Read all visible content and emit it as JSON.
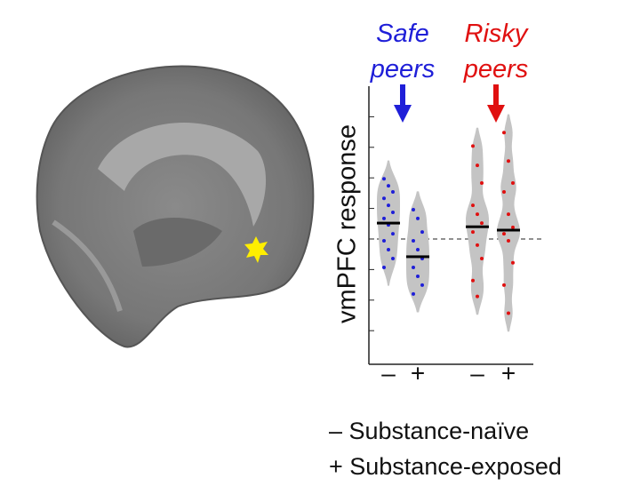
{
  "chart_data": {
    "type": "strip",
    "ylabel": "vmPFC response",
    "ylim": [
      -4.1,
      5
    ],
    "yticks": [
      -3,
      -2,
      -1,
      0,
      1,
      2,
      3,
      4
    ],
    "refline": 0,
    "series": [
      {
        "name": "Safe peers",
        "color": "#1f1fd8",
        "categories": [
          "–",
          "+"
        ],
        "values": [
          [
            1.97,
            1.74,
            1.54,
            1.33,
            1.1,
            0.87,
            0.67,
            0.46,
            0.17,
            -0.06,
            -0.35,
            -0.64,
            -0.93
          ],
          [
            0.96,
            0.67,
            0.23,
            -0.06,
            -0.35,
            -0.64,
            -0.93,
            -1.22,
            -1.51,
            -1.8
          ]
        ],
        "means": [
          0.52,
          -0.58
        ]
      },
      {
        "name": "Risky peers",
        "color": "#e01010",
        "categories": [
          "–",
          "+"
        ],
        "values": [
          [
            3.04,
            2.41,
            1.83,
            1.1,
            0.81,
            0.52,
            0.23,
            -0.2,
            -0.64,
            -1.36,
            -1.88
          ],
          [
            3.48,
            2.55,
            1.83,
            1.54,
            0.81,
            0.38,
            0.17,
            -0.06,
            -0.78,
            -1.51,
            -2.43
          ]
        ],
        "means": [
          0.4,
          0.29
        ]
      }
    ],
    "legend": [
      "– Substance-naïve",
      "+ Substance-exposed"
    ]
  }
}
